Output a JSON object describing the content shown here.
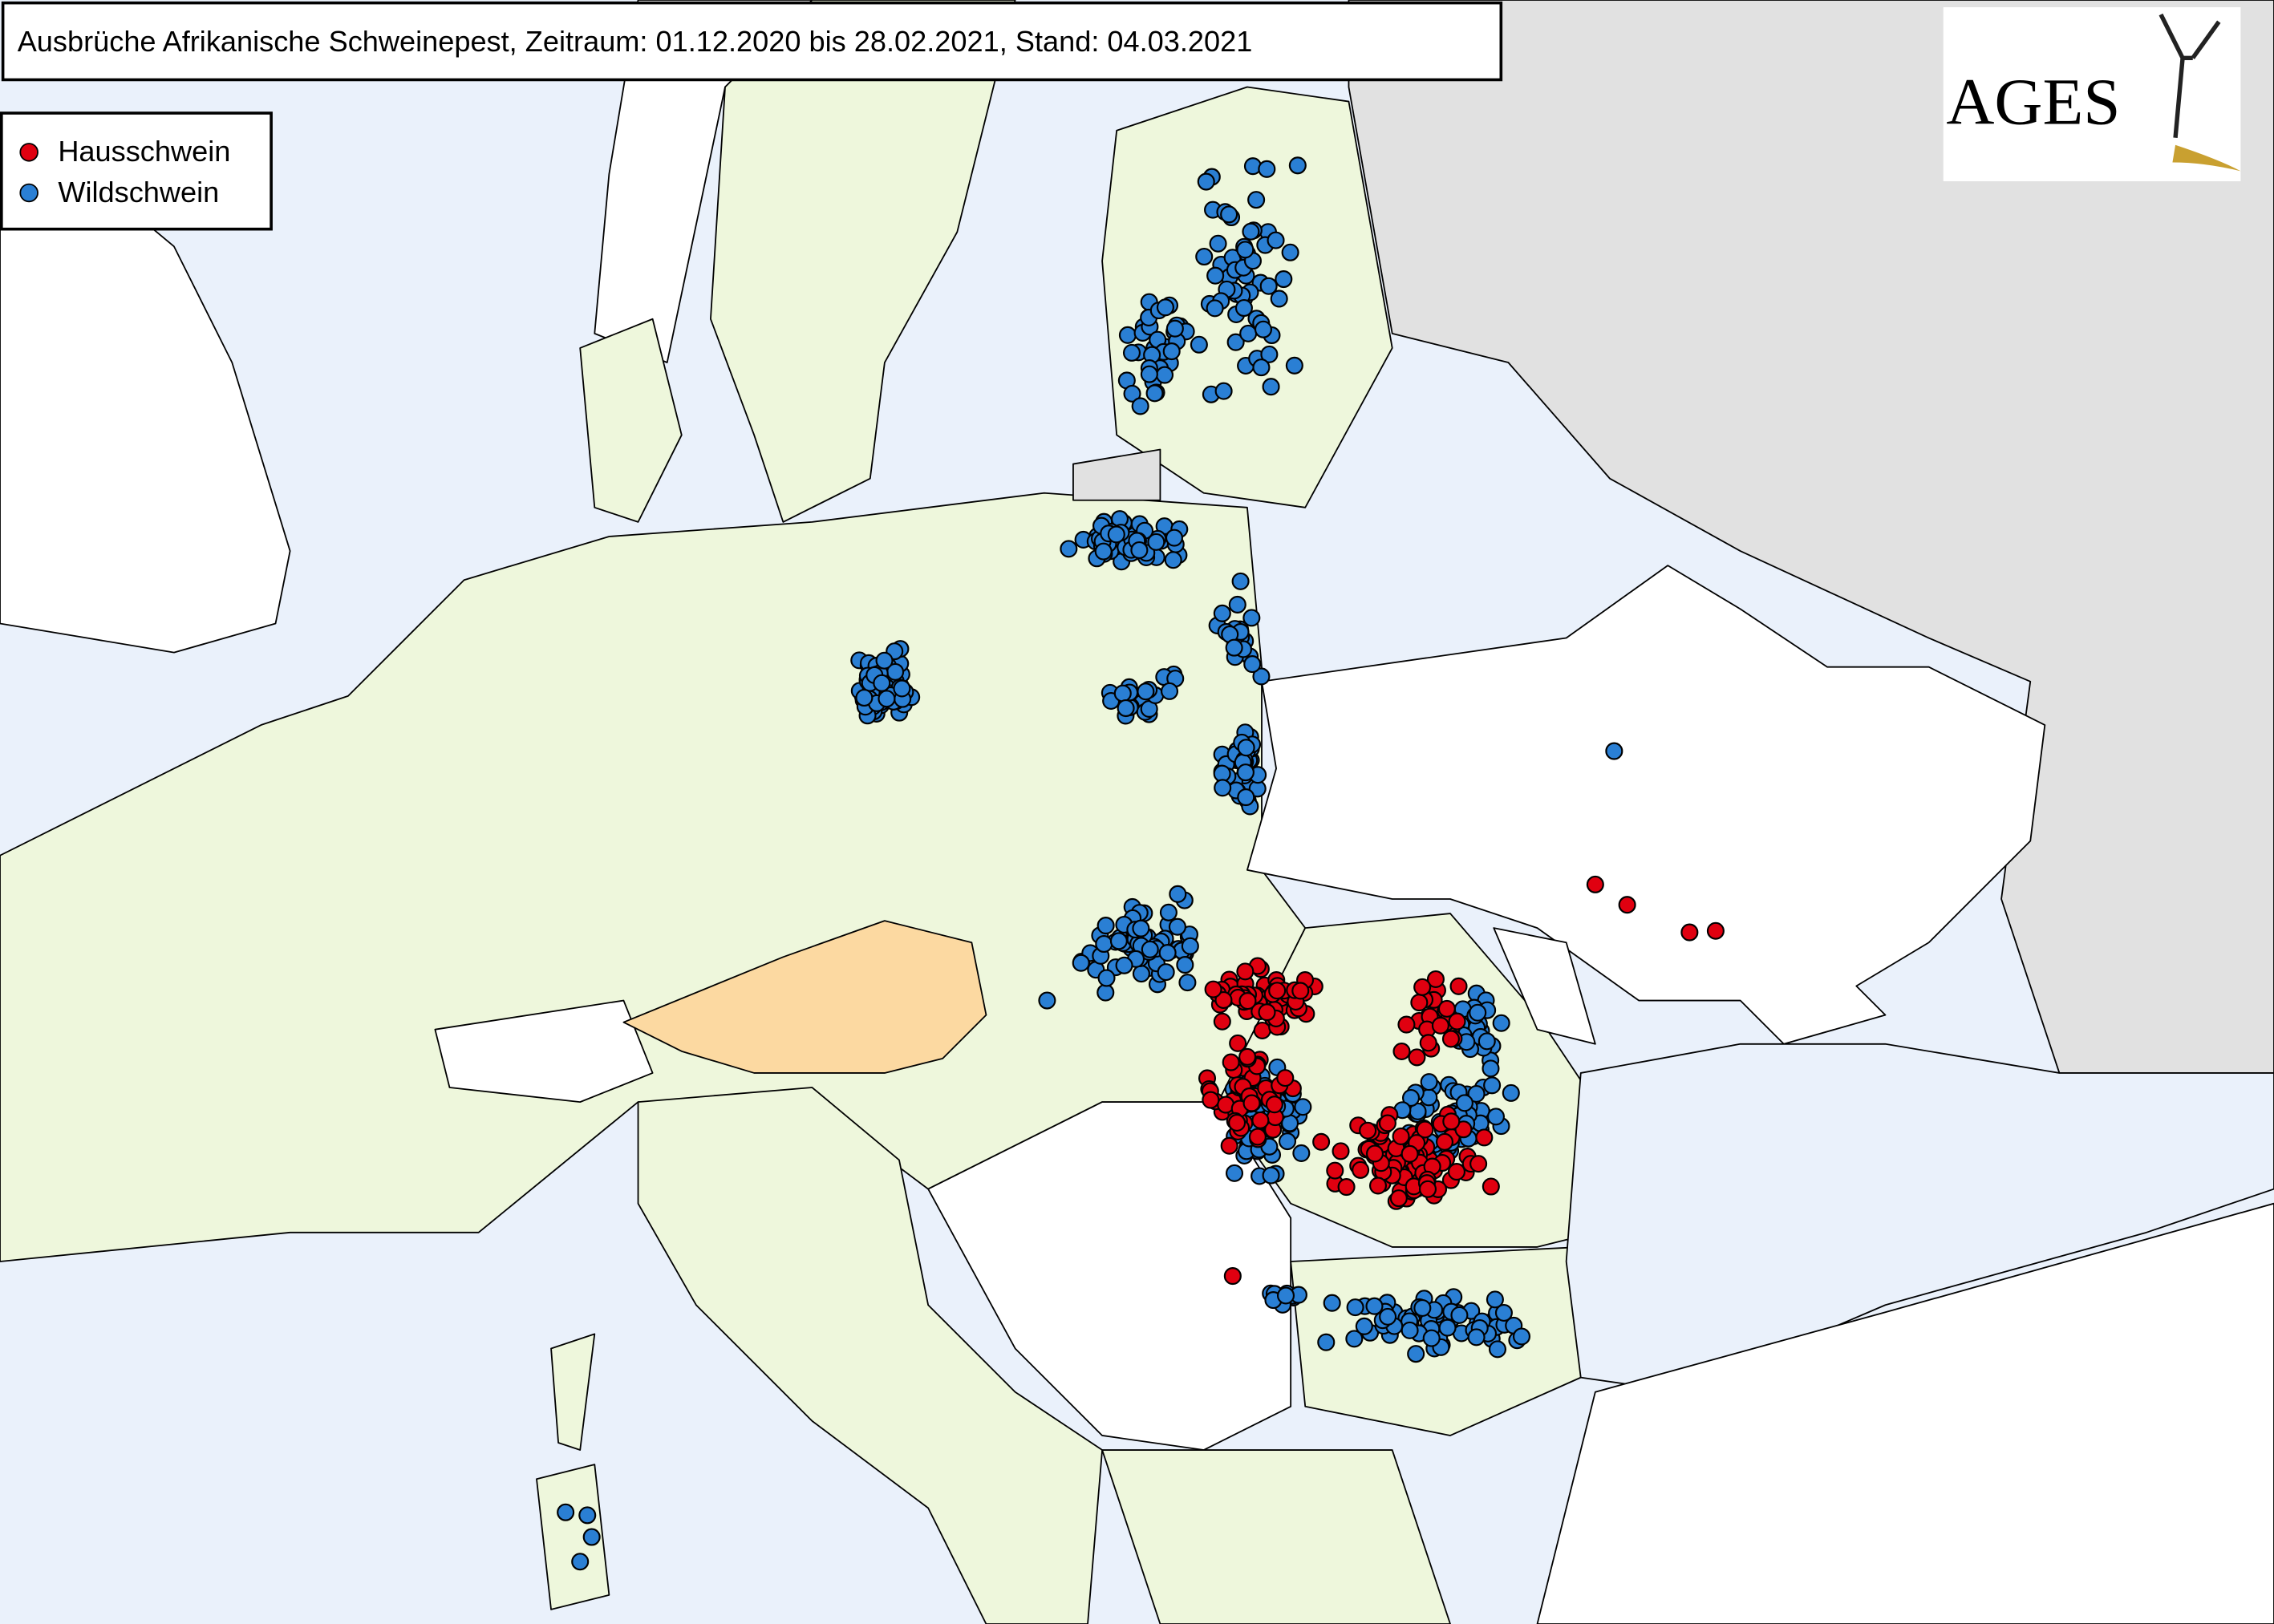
{
  "header": {
    "title": "Ausbrüche Afrikanische Schweinepest, Zeitraum: 01.12.2020 bis 28.02.2021, Stand: 04.03.2021"
  },
  "legend": {
    "items": [
      "Hausschwein",
      "Wildschwein"
    ]
  },
  "logo": {
    "text": "AGES"
  }
}
